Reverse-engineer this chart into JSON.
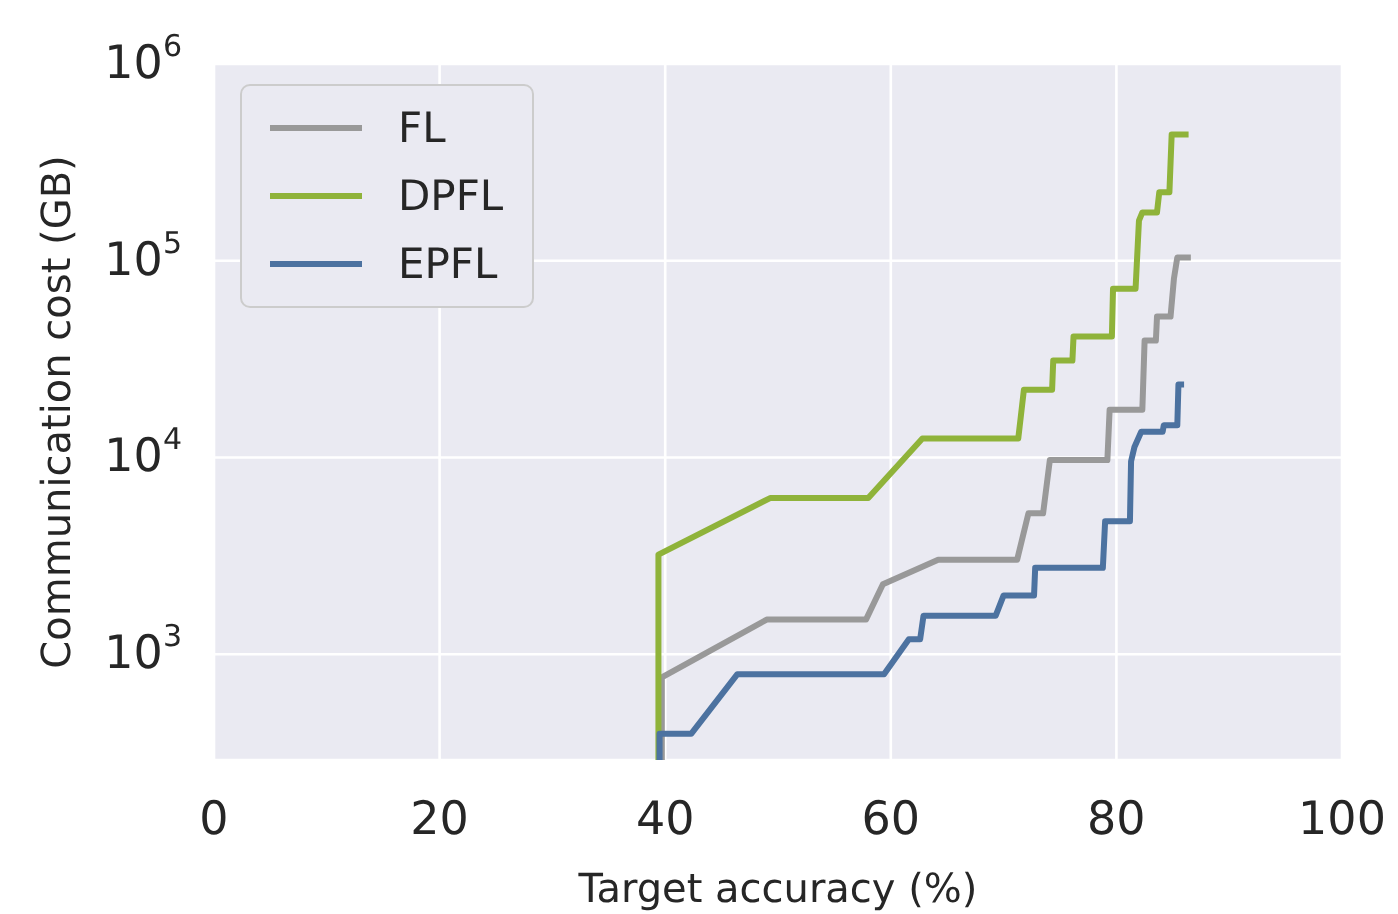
{
  "chart_data": {
    "type": "line",
    "xlabel": "Target accuracy (%)",
    "ylabel": "Communication cost (GB)",
    "log": "y",
    "grid": true,
    "legend": "top left",
    "line_style": "solid",
    "marker": "none",
    "xlim": [
      0,
      100
    ],
    "xticks": [
      0,
      20,
      40,
      60,
      80,
      100
    ],
    "ylim": [
      290,
      1000000
    ],
    "yticks": [
      {
        "value": 1000,
        "label": "10$^{3}$"
      },
      {
        "value": 10000,
        "label": "10$^{4}$"
      },
      {
        "value": 100000,
        "label": "10$^{5}$"
      },
      {
        "value": 1000000,
        "label": "10$^{6}$"
      }
    ],
    "series": [
      {
        "name": "FL",
        "color": "#999999",
        "x": [
          39.7,
          39.7,
          49.0,
          57.8,
          59.3,
          64.2,
          71.2,
          72.2,
          73.5,
          74.1,
          79.2,
          79.4,
          82.3,
          82.5,
          83.5,
          83.6,
          84.8,
          85.1,
          85.4,
          86.6
        ],
        "values": [
          290,
          762,
          1500,
          1500,
          2270,
          3020,
          3020,
          5200,
          5200,
          9700,
          9700,
          17500,
          17500,
          39300,
          39300,
          52000,
          52000,
          81100,
          104000,
          104000
        ]
      },
      {
        "name": "DPFL",
        "color": "#8fb33a",
        "x": [
          39.4,
          39.4,
          49.3,
          58.0,
          62.8,
          71.3,
          71.8,
          74.3,
          74.4,
          76.1,
          76.2,
          79.6,
          79.7,
          81.7,
          82.0,
          82.3,
          83.6,
          83.8,
          84.7,
          84.9,
          86.4
        ],
        "values": [
          290,
          3210,
          6220,
          6220,
          12500,
          12500,
          22100,
          22100,
          31100,
          31100,
          41200,
          41200,
          72100,
          72100,
          160000,
          176000,
          176000,
          223000,
          223000,
          438000,
          438000
        ]
      },
      {
        "name": "EPFL",
        "color": "#4c72a0",
        "x": [
          39.5,
          39.5,
          42.3,
          46.4,
          59.4,
          61.6,
          62.6,
          62.9,
          69.3,
          70.0,
          72.7,
          72.8,
          78.8,
          79.0,
          81.2,
          81.3,
          81.6,
          82.2,
          84.1,
          84.2,
          85.4,
          85.5,
          86.0
        ],
        "values": [
          290,
          394,
          394,
          792,
          792,
          1190,
          1190,
          1570,
          1570,
          1990,
          1990,
          2750,
          2750,
          4740,
          4740,
          9550,
          11300,
          13500,
          13500,
          14600,
          14600,
          23500,
          23500
        ]
      }
    ]
  }
}
